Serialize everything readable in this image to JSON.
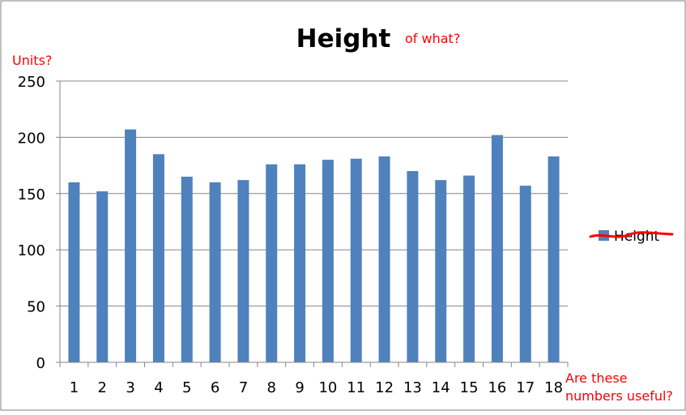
{
  "chart_data": {
    "type": "bar",
    "title": "Height",
    "categories": [
      "1",
      "2",
      "3",
      "4",
      "5",
      "6",
      "7",
      "8",
      "9",
      "10",
      "11",
      "12",
      "13",
      "14",
      "15",
      "16",
      "17",
      "18"
    ],
    "series": [
      {
        "name": "Height",
        "values": [
          160,
          152,
          207,
          185,
          165,
          160,
          162,
          176,
          176,
          180,
          181,
          183,
          170,
          162,
          166,
          202,
          157,
          183
        ],
        "color": "#4f81bd"
      }
    ],
    "y_ticks": [
      "0",
      "50",
      "100",
      "150",
      "200",
      "250"
    ],
    "ylim": [
      0,
      250
    ],
    "grid": true,
    "legend_position": "right"
  },
  "annotations": {
    "title_note": "of what?",
    "y_note": "Units?",
    "x_note_line1": "Are these",
    "x_note_line2": "numbers useful?",
    "color": "#ff0000"
  }
}
